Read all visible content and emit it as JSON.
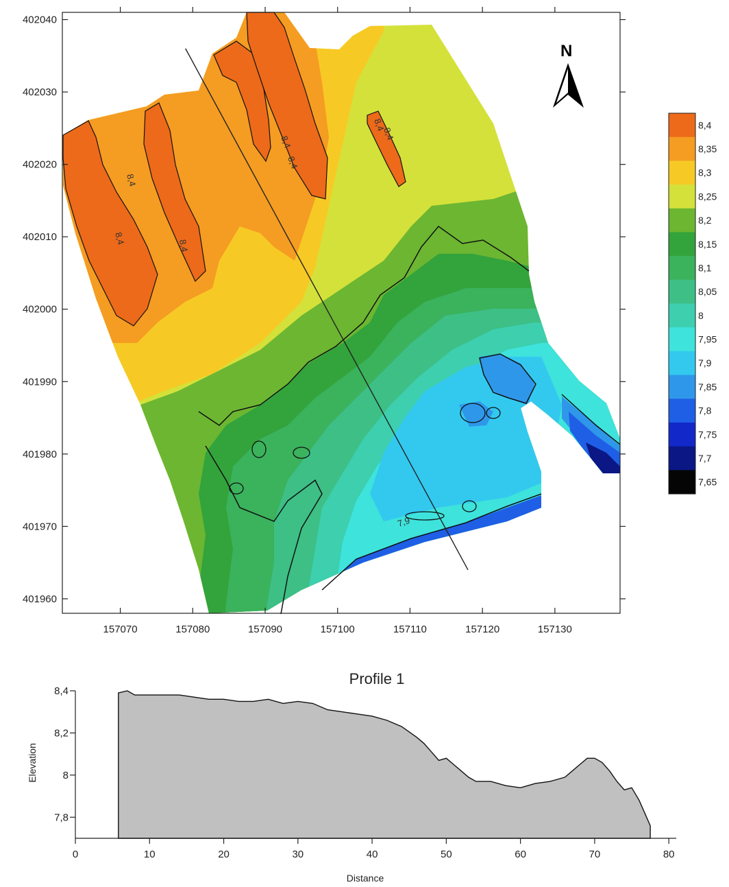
{
  "chart_data": [
    {
      "type": "heatmap",
      "subtype": "filled-contour-map",
      "title": "",
      "xlabel": "",
      "ylabel": "",
      "xlim": [
        157062,
        157139
      ],
      "ylim": [
        401958,
        402041
      ],
      "x_ticks": [
        157070,
        157080,
        157090,
        157100,
        157110,
        157120,
        157130
      ],
      "y_ticks": [
        402040,
        402030,
        402020,
        402010,
        402000,
        401990,
        401980,
        401970,
        401960
      ],
      "contour_interval": 0.05,
      "labeled_contours": [
        "8,4",
        "8,4",
        "8,4",
        "8,4",
        "8,4",
        "8,4",
        "8,4",
        "7,9"
      ],
      "profile_line": {
        "start": [
          157079,
          402036
        ],
        "end": [
          157118,
          401964
        ]
      },
      "north_arrow": {
        "label": "N"
      },
      "grid": false,
      "legend_position": "right",
      "colorbar": {
        "levels": [
          "8,4",
          "8,35",
          "8,3",
          "8,25",
          "8,2",
          "8,15",
          "8,1",
          "8,05",
          "8",
          "7,95",
          "7,9",
          "7,85",
          "7,8",
          "7,75",
          "7,7",
          "7,65"
        ],
        "colors": [
          "#ec6a1a",
          "#f59c22",
          "#f7c925",
          "#d4e13a",
          "#6cb632",
          "#33a33c",
          "#3bb25c",
          "#3dbf86",
          "#3dcfae",
          "#3ee3dc",
          "#33c9ef",
          "#2f97ea",
          "#1f5fe6",
          "#1228c9",
          "#0a1785",
          "#050505"
        ]
      }
    },
    {
      "type": "area",
      "title": "Profile 1",
      "xlabel": "Distance",
      "ylabel": "Elevation",
      "xlim": [
        0,
        81
      ],
      "ylim": [
        7.7,
        8.4
      ],
      "x_ticks": [
        0,
        10,
        20,
        30,
        40,
        50,
        60,
        70,
        80
      ],
      "y_ticks": [
        7.8,
        8.0,
        8.2,
        8.4
      ],
      "y_tick_labels": [
        "7,8",
        "8",
        "8,2",
        "8,4"
      ],
      "grid": false,
      "series": [
        {
          "x": [
            5.8,
            7,
            8,
            9,
            10,
            12,
            14,
            16,
            18,
            20,
            22,
            24,
            26,
            28,
            30,
            32,
            34,
            36,
            38,
            40,
            42,
            44,
            46,
            47,
            48,
            49,
            50,
            51,
            52,
            53,
            54,
            56,
            58,
            60,
            62,
            64,
            65,
            66,
            67,
            68,
            69,
            70,
            71,
            72,
            73,
            74,
            75,
            76,
            77,
            77.5
          ],
          "y": [
            8.39,
            8.4,
            8.38,
            8.38,
            8.38,
            8.38,
            8.38,
            8.37,
            8.36,
            8.36,
            8.35,
            8.35,
            8.36,
            8.34,
            8.35,
            8.34,
            8.31,
            8.3,
            8.29,
            8.28,
            8.26,
            8.23,
            8.18,
            8.15,
            8.11,
            8.07,
            8.08,
            8.05,
            8.02,
            7.99,
            7.97,
            7.97,
            7.95,
            7.94,
            7.96,
            7.97,
            7.98,
            7.99,
            8.02,
            8.05,
            8.08,
            8.08,
            8.06,
            8.02,
            7.97,
            7.93,
            7.94,
            7.88,
            7.8,
            7.76
          ]
        }
      ]
    }
  ]
}
